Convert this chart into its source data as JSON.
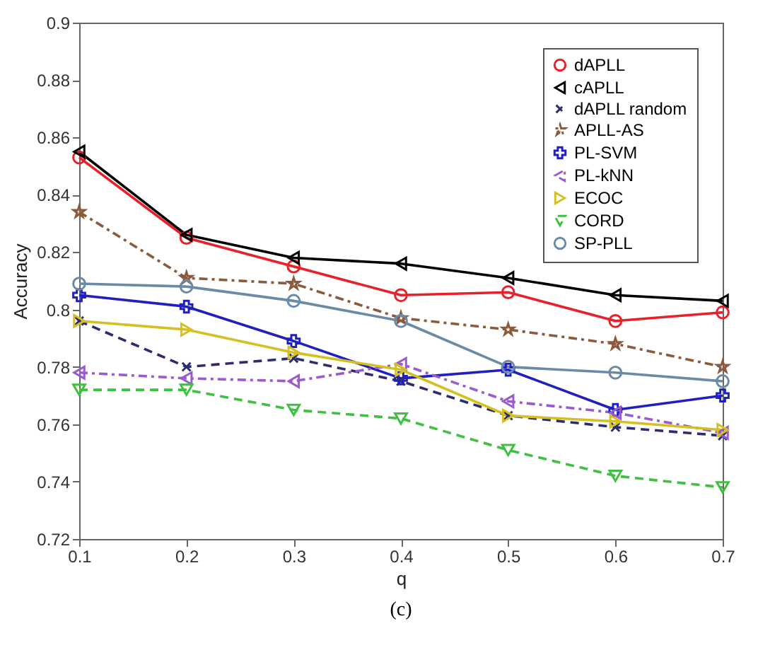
{
  "chart_data": {
    "type": "line",
    "xlabel": "q",
    "ylabel": "Accuracy",
    "annotations": [
      "(c)"
    ],
    "x": [
      0.1,
      0.2,
      0.3,
      0.4,
      0.5,
      0.6,
      0.7
    ],
    "xlim": [
      0.1,
      0.7
    ],
    "xticks": [
      0.1,
      0.2,
      0.3,
      0.4,
      0.5,
      0.6,
      0.7
    ],
    "ylim": [
      0.72,
      0.9
    ],
    "yticks": [
      0.72,
      0.74,
      0.76,
      0.78,
      0.8,
      0.82,
      0.84,
      0.86,
      0.88,
      0.9
    ],
    "grid": false,
    "legend": "top right",
    "series": [
      {
        "name": "dAPLL",
        "color": "#e8202a",
        "marker": "circle",
        "line_style": "solid",
        "values": [
          0.853,
          0.825,
          0.815,
          0.805,
          0.806,
          0.796,
          0.799
        ]
      },
      {
        "name": "cAPLL",
        "color": "#000000",
        "marker": "triangle-left",
        "line_style": "solid",
        "values": [
          0.855,
          0.826,
          0.818,
          0.816,
          0.811,
          0.805,
          0.803
        ]
      },
      {
        "name": "dAPLL random",
        "color": "#2c2c6e",
        "marker": "x",
        "line_style": "dashed",
        "values": [
          0.796,
          0.78,
          0.783,
          0.775,
          0.763,
          0.759,
          0.756
        ]
      },
      {
        "name": "APLL-AS",
        "color": "#8b5a3c",
        "marker": "star",
        "line_style": "dashdot",
        "values": [
          0.834,
          0.811,
          0.809,
          0.797,
          0.793,
          0.788,
          0.78
        ]
      },
      {
        "name": "PL-SVM",
        "color": "#2020c0",
        "marker": "cross",
        "line_style": "solid",
        "values": [
          0.805,
          0.801,
          0.789,
          0.776,
          0.779,
          0.765,
          0.77
        ]
      },
      {
        "name": "PL-kNN",
        "color": "#9a5ad0",
        "marker": "triangle-left",
        "line_style": "dashdot",
        "values": [
          0.778,
          0.776,
          0.775,
          0.781,
          0.768,
          0.764,
          0.757
        ]
      },
      {
        "name": "ECOC",
        "color": "#d4c020",
        "marker": "triangle-right",
        "line_style": "solid",
        "values": [
          0.796,
          0.793,
          0.785,
          0.779,
          0.763,
          0.761,
          0.758
        ]
      },
      {
        "name": "CORD",
        "color": "#40c040",
        "marker": "triangle-down",
        "line_style": "dashed",
        "values": [
          0.772,
          0.772,
          0.765,
          0.762,
          0.751,
          0.742,
          0.738
        ]
      },
      {
        "name": "SP-PLL",
        "color": "#6a8aa8",
        "marker": "circle",
        "line_style": "solid",
        "values": [
          0.809,
          0.808,
          0.803,
          0.796,
          0.78,
          0.778,
          0.775
        ]
      }
    ]
  }
}
